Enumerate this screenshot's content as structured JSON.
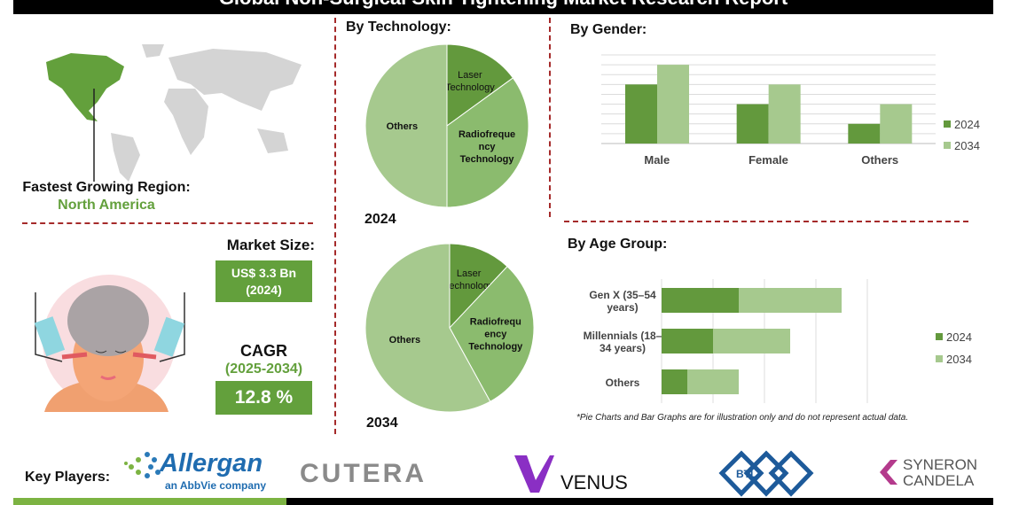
{
  "title": "Global Non-Surgical Skin Tightening Market Research Report",
  "region": {
    "label": "Fastest Growing Region:",
    "value": "North America"
  },
  "market_size": {
    "label": "Market Size:",
    "value": "US$ 3.3 Bn",
    "year": "(2024)"
  },
  "cagr": {
    "label": "CAGR",
    "period": "(2025-2034)",
    "value": "12.8 %"
  },
  "colors": {
    "dark_green": "#63993d",
    "light_green": "#a6c98e",
    "mid_green": "#8bbb6e",
    "accent": "#63a03c",
    "divider": "#a52a2a"
  },
  "key_players": {
    "label": "Key Players:",
    "logos": [
      "Allergan",
      "an AbbVie company",
      "CUTERA",
      "VENUS",
      "BTL",
      "SYNERON",
      "CANDELA"
    ]
  },
  "chart_data": [
    {
      "type": "pie",
      "title": "By Technology:",
      "year_label": "2024",
      "labels": [
        "Laser Technology",
        "Radiofrequency Technology",
        "Others"
      ],
      "display_labels": [
        "Laser\nTechnology",
        "Radiofreque\nncy\nTechnology",
        "Others"
      ],
      "values": [
        15,
        35,
        50
      ]
    },
    {
      "type": "pie",
      "year_label": "2034",
      "labels": [
        "Laser Technology",
        "Radiofrequency Technology",
        "Others"
      ],
      "display_labels": [
        "Laser\nTechnology",
        "Radiofrequ\nency\nTechnology",
        "Others"
      ],
      "values": [
        12,
        30,
        58
      ]
    },
    {
      "type": "bar",
      "title": "By  Gender:",
      "categories": [
        "Male",
        "Female",
        "Others"
      ],
      "series": [
        {
          "name": "2024",
          "values": [
            6,
            4,
            2
          ]
        },
        {
          "name": "2034",
          "values": [
            8,
            6,
            4
          ]
        }
      ],
      "ylim": [
        0,
        9
      ],
      "grid": true,
      "legend": "right"
    },
    {
      "type": "bar",
      "orientation": "horizontal",
      "stacked": true,
      "title": "By Age Group:",
      "categories": [
        "Gen X (35–54\nyears)",
        "Millennials (18–\n34 years)",
        "Others"
      ],
      "series": [
        {
          "name": "2024",
          "values": [
            1.5,
            1.0,
            0.5
          ]
        },
        {
          "name": "2034",
          "values": [
            2.0,
            1.5,
            1.0
          ]
        }
      ],
      "xlim": [
        0,
        4
      ],
      "grid": true,
      "legend": "right",
      "note": "*Pie Charts and Bar Graphs are for illustration only and do not represent actual data."
    }
  ]
}
